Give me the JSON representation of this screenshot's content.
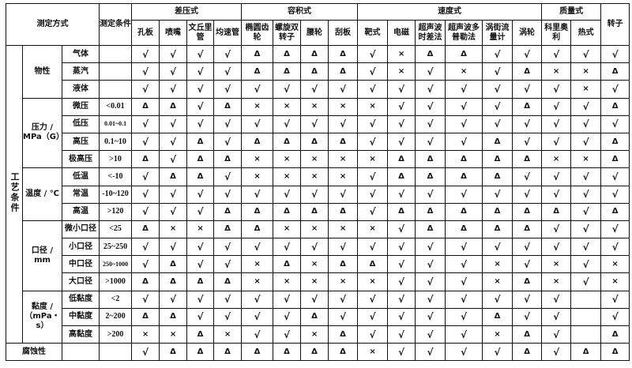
{
  "header": {
    "method_label": "测定方式",
    "condition_label": "测定条件",
    "groups": [
      {
        "label": "差压式",
        "columns": [
          "孔板",
          "喷嘴",
          "文丘里管",
          "均速管"
        ]
      },
      {
        "label": "容积式",
        "columns": [
          "椭圆齿轮",
          "螺旋双转子",
          "腰轮",
          "刮板"
        ]
      },
      {
        "label": "速度式",
        "columns": [
          "靶式",
          "电磁",
          "超声波时差法",
          "超声波多普勒法",
          "涡街流量计",
          "涡轮"
        ]
      },
      {
        "label": "质量式",
        "columns": [
          "科里奥利",
          "热式"
        ]
      }
    ],
    "last_column": "转子"
  },
  "side_label": "工艺条件",
  "legend_symbols": {
    "suitable": "√",
    "conditional": "Δ",
    "unsuitable": "×"
  },
  "categories": [
    {
      "label": "物性",
      "rows": [
        {
          "sub": "气体",
          "cond": "",
          "values": [
            "√",
            "√",
            "√",
            "√",
            "Δ",
            "Δ",
            "Δ",
            "Δ",
            "√",
            "×",
            "Δ",
            "Δ",
            "√",
            "√",
            "√",
            "√",
            "√"
          ]
        },
        {
          "sub": "蒸汽",
          "cond": "",
          "values": [
            "√",
            "√",
            "√",
            "√",
            "Δ",
            "Δ",
            "Δ",
            "Δ",
            "√",
            "×",
            "√",
            "×",
            "√",
            "Δ",
            "×",
            "×",
            "Δ"
          ]
        },
        {
          "sub": "液体",
          "cond": "",
          "values": [
            "√",
            "√",
            "√",
            "√",
            "√",
            "√",
            "√",
            "√",
            "√",
            "√",
            "√",
            "√",
            "√",
            "√",
            "√",
            "×",
            "√"
          ]
        }
      ]
    },
    {
      "label": "压力 / MPa（G）",
      "rows": [
        {
          "sub": "微压",
          "cond": "<0.01",
          "values": [
            "Δ",
            "Δ",
            "√",
            "Δ",
            "×",
            "×",
            "×",
            "×",
            "×",
            "√",
            "√",
            "√",
            "√",
            "Δ",
            "√",
            "√",
            "Δ"
          ]
        },
        {
          "sub": "低压",
          "cond": "0.01~0.1",
          "values": [
            "√",
            "√",
            "√",
            "√",
            "√",
            "√",
            "√",
            "√",
            "√",
            "√",
            "√",
            "√",
            "√",
            "√",
            "√",
            "√",
            "√"
          ]
        },
        {
          "sub": "高压",
          "cond": "0.1~10",
          "values": [
            "√",
            "√",
            "Δ",
            "√",
            "Δ",
            "Δ",
            "Δ",
            "Δ",
            "√",
            "√",
            "√",
            "√",
            "Δ",
            "√",
            "√",
            "√",
            "Δ"
          ]
        },
        {
          "sub": "极高压",
          "cond": ">10",
          "values": [
            "Δ",
            "√",
            "Δ",
            "Δ",
            "×",
            "×",
            "×",
            "×",
            "×",
            "Δ",
            "Δ",
            "Δ",
            "Δ",
            "Δ",
            "×",
            "×",
            "Δ"
          ]
        }
      ]
    },
    {
      "label": "温度 / ℃",
      "rows": [
        {
          "sub": "低温",
          "cond": "<-10",
          "values": [
            "√",
            "Δ",
            "Δ",
            "√",
            "×",
            "×",
            "×",
            "×",
            "√",
            "Δ",
            "Δ",
            "Δ",
            "Δ",
            "√",
            "√",
            "√",
            "√"
          ]
        },
        {
          "sub": "常温",
          "cond": "-10~120",
          "values": [
            "√",
            "√",
            "√",
            "√",
            "√",
            "√",
            "√",
            "√",
            "√",
            "√",
            "√",
            "√",
            "√",
            "√",
            "√",
            "√",
            "√"
          ]
        },
        {
          "sub": "高温",
          "cond": ">120",
          "values": [
            "√",
            "√",
            "√",
            "Δ",
            "Δ",
            "Δ",
            "Δ",
            "Δ",
            "√",
            "Δ",
            "Δ",
            "Δ",
            "Δ",
            "Δ",
            "Δ",
            "√",
            "Δ"
          ]
        }
      ]
    },
    {
      "label": "口径 / mm",
      "rows": [
        {
          "sub": "微小口径",
          "cond": "<25",
          "values": [
            "Δ",
            "×",
            "×",
            "Δ",
            "Δ",
            "×",
            "×",
            "×",
            "×",
            "√",
            "Δ",
            "Δ",
            "Δ",
            "Δ",
            "√",
            "√",
            "√"
          ]
        },
        {
          "sub": "小口径",
          "cond": "25~250",
          "values": [
            "√",
            "√",
            "√",
            "√",
            "√",
            "√",
            "√",
            "√",
            "√",
            "√",
            "√",
            "√",
            "√",
            "√",
            "√",
            "√",
            "√"
          ]
        },
        {
          "sub": "中口径",
          "cond": "250~1000",
          "values": [
            "√",
            "Δ",
            "√",
            "√",
            "×",
            "Δ",
            "×",
            "Δ",
            "Δ",
            "√",
            "√",
            "√",
            "×",
            "√",
            "×",
            "√",
            "×"
          ]
        },
        {
          "sub": "大口径",
          "cond": ">1000",
          "values": [
            "Δ",
            "Δ",
            "Δ",
            "Δ",
            "×",
            "×",
            "×",
            "×",
            "×",
            "√",
            "√",
            "√",
            "×",
            "Δ",
            "×",
            "√",
            "×"
          ]
        }
      ]
    },
    {
      "label": "黏度 / （mPa・s）",
      "rows": [
        {
          "sub": "低黏度",
          "cond": "<2",
          "values": [
            "√",
            "√",
            "√",
            "√",
            "√",
            "√",
            "√",
            "√",
            "√",
            "√",
            "√",
            "√",
            "√",
            "√",
            "√",
            "",
            "√"
          ]
        },
        {
          "sub": "中黏度",
          "cond": "2~200",
          "values": [
            "Δ",
            "Δ",
            "√",
            "√",
            "√",
            "√",
            "Δ",
            "√",
            "√",
            "√",
            "√",
            "√",
            "Δ",
            "√",
            "√",
            "",
            "√"
          ]
        },
        {
          "sub": "高黏度",
          "cond": ">200",
          "values": [
            "×",
            "×",
            "Δ",
            "×",
            "√",
            "√",
            "×",
            "Δ",
            "√",
            "√",
            "√",
            "√",
            "×",
            "Δ",
            "√",
            "",
            "Δ"
          ]
        }
      ]
    },
    {
      "label": "腐蚀性",
      "single": true,
      "rows": [
        {
          "sub": "",
          "cond": "",
          "values": [
            "√",
            "Δ",
            "Δ",
            "Δ",
            "Δ",
            "Δ",
            "Δ",
            "Δ",
            "×",
            "√",
            "√",
            "√",
            "√",
            "Δ",
            "√",
            "Δ",
            "Δ"
          ]
        }
      ]
    }
  ]
}
